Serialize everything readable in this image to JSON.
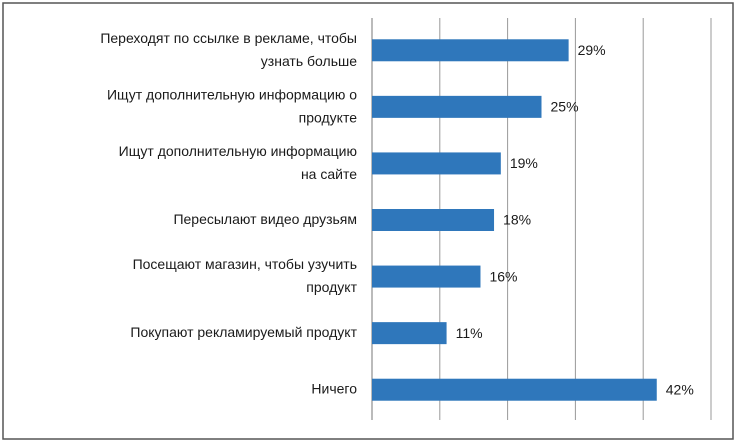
{
  "chart_data": {
    "type": "barh",
    "categories": [
      "Переходят по ссылке в рекламе, чтобы\nузнать больше",
      "Ищут дополнительную информацию о\nпродукте",
      "Ищут дополнительную информацию\nна сайте",
      "Пересылают видео друзьям",
      "Посещают магазин, чтобы узучить\nпродукт",
      "Покупают рекламируемый продукт",
      "Ничего"
    ],
    "values": [
      29,
      25,
      19,
      18,
      16,
      11,
      42
    ],
    "value_labels": [
      "29%",
      "25%",
      "19%",
      "18%",
      "16%",
      "11%",
      "42%"
    ],
    "color": "#2f77bb",
    "xlim": [
      0,
      50
    ],
    "xticks": [
      0,
      10,
      20,
      30,
      40,
      50
    ],
    "grid": true
  }
}
